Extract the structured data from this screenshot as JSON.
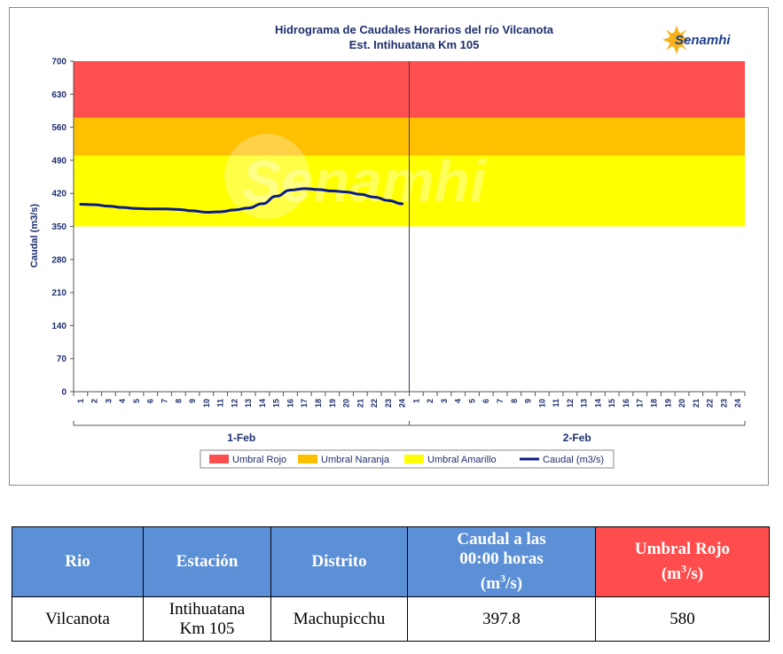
{
  "chart_data": {
    "type": "line",
    "title": "Hidrograma de Caudales Horarios del río Vilcanota",
    "subtitle": "Est. Intihuatana Km 105",
    "ylabel": "Caudal  (m3/s)",
    "ylim": [
      0,
      700
    ],
    "yticks": [
      0,
      70,
      140,
      210,
      280,
      350,
      420,
      490,
      560,
      630,
      700
    ],
    "x_hour_labels": [
      "1",
      "2",
      "3",
      "4",
      "5",
      "6",
      "7",
      "8",
      "9",
      "10",
      "11",
      "12",
      "13",
      "14",
      "15",
      "16",
      "17",
      "18",
      "19",
      "20",
      "21",
      "22",
      "23",
      "24"
    ],
    "days": [
      "1-Feb",
      "2-Feb"
    ],
    "thresholds": [
      {
        "name": "Umbral Rojo",
        "from": 580,
        "to": 700,
        "color": "#ff5050"
      },
      {
        "name": "Umbral Naranja",
        "from": 500,
        "to": 580,
        "color": "#ffc000"
      },
      {
        "name": "Umbral Amarillo",
        "from": 350,
        "to": 500,
        "color": "#ffff00"
      }
    ],
    "series": [
      {
        "name": "Caudal (m3/s)",
        "color": "#0a1a8c",
        "day": "1-Feb",
        "hours": [
          1,
          2,
          3,
          4,
          5,
          6,
          7,
          8,
          9,
          10,
          11,
          12,
          13,
          14,
          15,
          16,
          17,
          18,
          19,
          20,
          21,
          22,
          23,
          24
        ],
        "values": [
          397,
          396,
          393,
          390,
          388,
          387,
          387,
          386,
          383,
          380,
          381,
          385,
          389,
          398,
          414,
          427,
          430,
          428,
          425,
          423,
          418,
          412,
          405,
          397.8
        ]
      }
    ],
    "legend": [
      "Umbral Rojo",
      "Umbral Naranja",
      "Umbral Amarillo",
      "Caudal (m3/s)"
    ],
    "legend_position": "bottom",
    "grid": false
  },
  "logo": {
    "name": "Senamhi",
    "icon": "sun-logo-icon"
  },
  "watermark": "Senamhi",
  "table": {
    "headers": {
      "rio": "Rio",
      "estacion": "Estación",
      "distrito": "Distrito",
      "caudal_line1": "Caudal a las",
      "caudal_line2": "00:00 horas",
      "caudal_unit_pre": "(m",
      "caudal_unit_sup": "3",
      "caudal_unit_post": "/s)",
      "umbral_line1": "Umbral Rojo",
      "umbral_unit_pre": "(m",
      "umbral_unit_sup": "3",
      "umbral_unit_post": "/s)"
    },
    "row": {
      "rio": "Vilcanota",
      "estacion_line1": "Intihuatana",
      "estacion_line2": "Km 105",
      "distrito": "Machupicchu",
      "caudal": "397.8",
      "umbral_rojo": "580"
    }
  }
}
